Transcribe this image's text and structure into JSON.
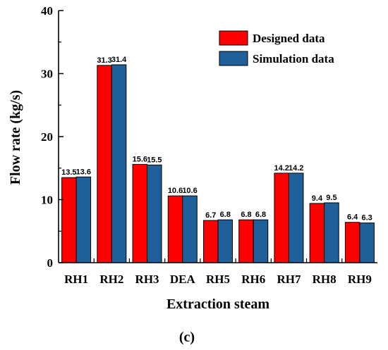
{
  "chart_data": {
    "type": "bar",
    "title": "",
    "xlabel": "Extraction steam",
    "ylabel": "Flow rate (kg/s)",
    "ylim": [
      0,
      40
    ],
    "yticks": [
      "0",
      "10",
      "20",
      "30",
      "40"
    ],
    "categories": [
      "RH1",
      "RH2",
      "RH3",
      "DEA",
      "RH5",
      "RH6",
      "RH7",
      "RH8",
      "RH9"
    ],
    "series": [
      {
        "name": "Designed data",
        "color": "#ff0000",
        "values": [
          13.5,
          31.3,
          15.6,
          10.6,
          6.7,
          6.8,
          14.2,
          9.4,
          6.4
        ],
        "labels": [
          "13.5",
          "31.3",
          "15.6",
          "10.6",
          "6.7",
          "6.8",
          "14.2",
          "9.4",
          "6.4"
        ]
      },
      {
        "name": "Simulation data",
        "color": "#1f5f9a",
        "values": [
          13.6,
          31.4,
          15.5,
          10.6,
          6.8,
          6.8,
          14.2,
          9.5,
          6.3
        ],
        "labels": [
          "13.6",
          "31.4",
          "15.5",
          "10.6",
          "6.8",
          "6.8",
          "14.2",
          "9.5",
          "6.3"
        ]
      }
    ],
    "legend": "top-right",
    "grid": false,
    "panel_label": "(c)"
  }
}
